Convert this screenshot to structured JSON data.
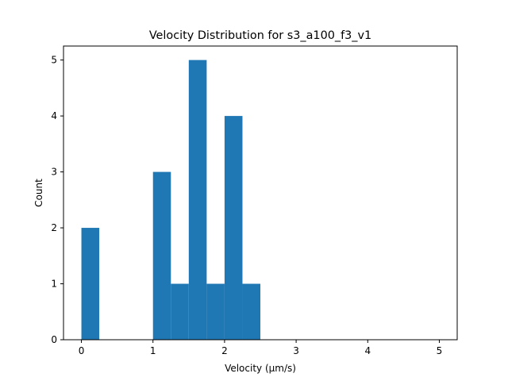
{
  "chart_data": {
    "type": "bar",
    "title": "Velocity Distribution for s3_a100_f3_v1",
    "xlabel": "Velocity (µm/s)",
    "ylabel": "Count",
    "xlim": [
      -0.25,
      5.25
    ],
    "ylim": [
      0,
      5.25
    ],
    "xticks": [
      0,
      1,
      2,
      3,
      4,
      5
    ],
    "xtick_labels": [
      "0",
      "1",
      "2",
      "3",
      "4",
      "5"
    ],
    "yticks": [
      0,
      1,
      2,
      3,
      4,
      5
    ],
    "ytick_labels": [
      "0",
      "1",
      "2",
      "3",
      "4",
      "5"
    ],
    "bar_color": "#1f77b4",
    "grid": false,
    "bins": [
      {
        "x0": 0.0,
        "x1": 0.25,
        "count": 2
      },
      {
        "x0": 0.25,
        "x1": 0.5,
        "count": 0
      },
      {
        "x0": 0.5,
        "x1": 0.75,
        "count": 0
      },
      {
        "x0": 0.75,
        "x1": 1.0,
        "count": 0
      },
      {
        "x0": 1.0,
        "x1": 1.25,
        "count": 3
      },
      {
        "x0": 1.25,
        "x1": 1.5,
        "count": 1
      },
      {
        "x0": 1.5,
        "x1": 1.75,
        "count": 5
      },
      {
        "x0": 1.75,
        "x1": 2.0,
        "count": 1
      },
      {
        "x0": 2.0,
        "x1": 2.25,
        "count": 4
      },
      {
        "x0": 2.25,
        "x1": 2.5,
        "count": 1
      },
      {
        "x0": 2.5,
        "x1": 2.75,
        "count": 0
      },
      {
        "x0": 2.75,
        "x1": 3.0,
        "count": 0
      },
      {
        "x0": 3.0,
        "x1": 3.25,
        "count": 0
      },
      {
        "x0": 3.25,
        "x1": 3.5,
        "count": 0
      },
      {
        "x0": 3.5,
        "x1": 3.75,
        "count": 0
      },
      {
        "x0": 3.75,
        "x1": 4.0,
        "count": 0
      },
      {
        "x0": 4.0,
        "x1": 4.25,
        "count": 0
      },
      {
        "x0": 4.25,
        "x1": 4.5,
        "count": 0
      },
      {
        "x0": 4.5,
        "x1": 4.75,
        "count": 0
      },
      {
        "x0": 4.75,
        "x1": 5.0,
        "count": 0
      }
    ]
  }
}
